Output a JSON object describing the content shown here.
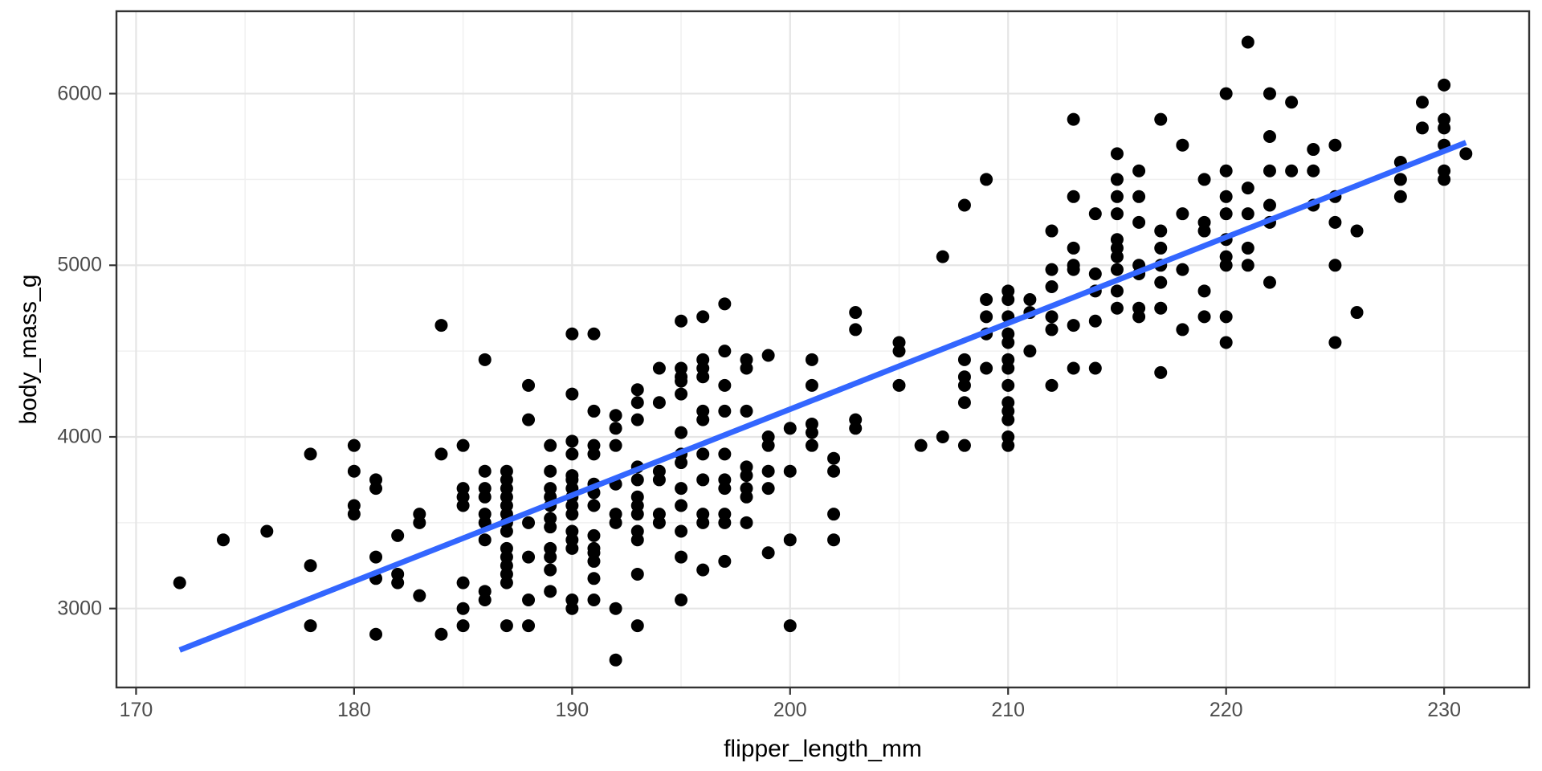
{
  "chart_data": {
    "type": "scatter",
    "title": "",
    "xlabel": "flipper_length_mm",
    "ylabel": "body_mass_g",
    "xlim": [
      169.1,
      233.9
    ],
    "ylim": [
      2540,
      6480
    ],
    "x_ticks": [
      170,
      180,
      190,
      200,
      210,
      220,
      230
    ],
    "y_ticks": [
      3000,
      4000,
      5000,
      6000
    ],
    "x_minor_ticks": [
      175,
      185,
      195,
      205,
      215,
      225
    ],
    "y_minor_ticks": [
      3500,
      4500,
      5500
    ],
    "grid": "on",
    "legend": "none",
    "trend_line": {
      "type": "linear-fit",
      "x1": 172,
      "y1": 2758,
      "x2": 231,
      "y2": 5715
    },
    "points": [
      [
        172,
        3150
      ],
      [
        174,
        3400
      ],
      [
        176,
        3450
      ],
      [
        178,
        3900
      ],
      [
        178,
        3250
      ],
      [
        178,
        2900
      ],
      [
        180,
        3950
      ],
      [
        180,
        3800
      ],
      [
        180,
        3600
      ],
      [
        180,
        3550
      ],
      [
        181,
        3750
      ],
      [
        181,
        3700
      ],
      [
        181,
        3300
      ],
      [
        181,
        3175
      ],
      [
        181,
        2850
      ],
      [
        182,
        3425
      ],
      [
        182,
        3200
      ],
      [
        182,
        3150
      ],
      [
        183,
        3550
      ],
      [
        183,
        3500
      ],
      [
        183,
        3075
      ],
      [
        184,
        4650
      ],
      [
        184,
        3900
      ],
      [
        184,
        2850
      ],
      [
        185,
        3950
      ],
      [
        185,
        3700
      ],
      [
        185,
        3650
      ],
      [
        185,
        3600
      ],
      [
        185,
        3150
      ],
      [
        185,
        3000
      ],
      [
        185,
        2900
      ],
      [
        186,
        4450
      ],
      [
        186,
        3800
      ],
      [
        186,
        3700
      ],
      [
        186,
        3650
      ],
      [
        186,
        3550
      ],
      [
        186,
        3500
      ],
      [
        186,
        3400
      ],
      [
        186,
        3100
      ],
      [
        186,
        3050
      ],
      [
        187,
        3800
      ],
      [
        187,
        3750
      ],
      [
        187,
        3700
      ],
      [
        187,
        3650
      ],
      [
        187,
        3600
      ],
      [
        187,
        3550
      ],
      [
        187,
        3500
      ],
      [
        187,
        3450
      ],
      [
        187,
        3350
      ],
      [
        187,
        3300
      ],
      [
        187,
        3250
      ],
      [
        187,
        3200
      ],
      [
        187,
        3150
      ],
      [
        187,
        2900
      ],
      [
        188,
        4300
      ],
      [
        188,
        4100
      ],
      [
        188,
        3500
      ],
      [
        188,
        3300
      ],
      [
        188,
        3050
      ],
      [
        188,
        2900
      ],
      [
        189,
        3950
      ],
      [
        189,
        3800
      ],
      [
        189,
        3700
      ],
      [
        189,
        3650
      ],
      [
        189,
        3600
      ],
      [
        189,
        3525
      ],
      [
        189,
        3475
      ],
      [
        189,
        3350
      ],
      [
        189,
        3300
      ],
      [
        189,
        3225
      ],
      [
        189,
        3100
      ],
      [
        190,
        4600
      ],
      [
        190,
        4250
      ],
      [
        190,
        3975
      ],
      [
        190,
        3900
      ],
      [
        190,
        3775
      ],
      [
        190,
        3750
      ],
      [
        190,
        3700
      ],
      [
        190,
        3650
      ],
      [
        190,
        3600
      ],
      [
        190,
        3550
      ],
      [
        190,
        3450
      ],
      [
        190,
        3400
      ],
      [
        190,
        3350
      ],
      [
        190,
        3050
      ],
      [
        190,
        3000
      ],
      [
        191,
        4600
      ],
      [
        191,
        4150
      ],
      [
        191,
        3950
      ],
      [
        191,
        3900
      ],
      [
        191,
        3725
      ],
      [
        191,
        3675
      ],
      [
        191,
        3600
      ],
      [
        191,
        3425
      ],
      [
        191,
        3350
      ],
      [
        191,
        3325
      ],
      [
        191,
        3275
      ],
      [
        191,
        3175
      ],
      [
        191,
        3050
      ],
      [
        192,
        4125
      ],
      [
        192,
        4050
      ],
      [
        192,
        3950
      ],
      [
        192,
        3725
      ],
      [
        192,
        3550
      ],
      [
        192,
        3500
      ],
      [
        192,
        3000
      ],
      [
        192,
        2700
      ],
      [
        193,
        4275
      ],
      [
        193,
        4200
      ],
      [
        193,
        4100
      ],
      [
        193,
        3825
      ],
      [
        193,
        3750
      ],
      [
        193,
        3650
      ],
      [
        193,
        3600
      ],
      [
        193,
        3550
      ],
      [
        193,
        3450
      ],
      [
        193,
        3400
      ],
      [
        193,
        3200
      ],
      [
        193,
        2900
      ],
      [
        194,
        4400
      ],
      [
        194,
        4200
      ],
      [
        194,
        3800
      ],
      [
        194,
        3750
      ],
      [
        194,
        3550
      ],
      [
        194,
        3500
      ],
      [
        195,
        4675
      ],
      [
        195,
        4400
      ],
      [
        195,
        4350
      ],
      [
        195,
        4325
      ],
      [
        195,
        4250
      ],
      [
        195,
        4025
      ],
      [
        195,
        3900
      ],
      [
        195,
        3850
      ],
      [
        195,
        3700
      ],
      [
        195,
        3600
      ],
      [
        195,
        3450
      ],
      [
        195,
        3300
      ],
      [
        195,
        3050
      ],
      [
        196,
        4700
      ],
      [
        196,
        4450
      ],
      [
        196,
        4400
      ],
      [
        196,
        4350
      ],
      [
        196,
        4150
      ],
      [
        196,
        4100
      ],
      [
        196,
        3900
      ],
      [
        196,
        3750
      ],
      [
        196,
        3550
      ],
      [
        196,
        3500
      ],
      [
        196,
        3225
      ],
      [
        197,
        4775
      ],
      [
        197,
        4500
      ],
      [
        197,
        4300
      ],
      [
        197,
        4150
      ],
      [
        197,
        3900
      ],
      [
        197,
        3750
      ],
      [
        197,
        3700
      ],
      [
        197,
        3550
      ],
      [
        197,
        3500
      ],
      [
        197,
        3275
      ],
      [
        198,
        4450
      ],
      [
        198,
        4400
      ],
      [
        198,
        4150
      ],
      [
        198,
        3825
      ],
      [
        198,
        3775
      ],
      [
        198,
        3700
      ],
      [
        198,
        3650
      ],
      [
        198,
        3500
      ],
      [
        199,
        4475
      ],
      [
        199,
        4000
      ],
      [
        199,
        3950
      ],
      [
        199,
        3800
      ],
      [
        199,
        3700
      ],
      [
        199,
        3325
      ],
      [
        200,
        4050
      ],
      [
        200,
        3800
      ],
      [
        200,
        3400
      ],
      [
        200,
        2900
      ],
      [
        201,
        4450
      ],
      [
        201,
        4300
      ],
      [
        201,
        4075
      ],
      [
        201,
        4025
      ],
      [
        201,
        3950
      ],
      [
        202,
        3875
      ],
      [
        202,
        3800
      ],
      [
        202,
        3550
      ],
      [
        202,
        3400
      ],
      [
        203,
        4725
      ],
      [
        203,
        4625
      ],
      [
        203,
        4100
      ],
      [
        203,
        4050
      ],
      [
        205,
        4550
      ],
      [
        205,
        4500
      ],
      [
        205,
        4300
      ],
      [
        206,
        3950
      ],
      [
        207,
        5050
      ],
      [
        207,
        4000
      ],
      [
        208,
        5350
      ],
      [
        208,
        4450
      ],
      [
        208,
        4350
      ],
      [
        208,
        4300
      ],
      [
        208,
        4200
      ],
      [
        208,
        3950
      ],
      [
        209,
        5500
      ],
      [
        209,
        4800
      ],
      [
        209,
        4700
      ],
      [
        209,
        4600
      ],
      [
        209,
        4400
      ],
      [
        210,
        4850
      ],
      [
        210,
        4800
      ],
      [
        210,
        4700
      ],
      [
        210,
        4600
      ],
      [
        210,
        4550
      ],
      [
        210,
        4450
      ],
      [
        210,
        4400
      ],
      [
        210,
        4300
      ],
      [
        210,
        4200
      ],
      [
        210,
        4150
      ],
      [
        210,
        4100
      ],
      [
        210,
        4000
      ],
      [
        210,
        3950
      ],
      [
        211,
        4800
      ],
      [
        211,
        4725
      ],
      [
        211,
        4500
      ],
      [
        212,
        5200
      ],
      [
        212,
        4975
      ],
      [
        212,
        4875
      ],
      [
        212,
        4700
      ],
      [
        212,
        4625
      ],
      [
        212,
        4300
      ],
      [
        213,
        5850
      ],
      [
        213,
        5400
      ],
      [
        213,
        5100
      ],
      [
        213,
        5000
      ],
      [
        213,
        4975
      ],
      [
        213,
        4650
      ],
      [
        213,
        4400
      ],
      [
        214,
        5300
      ],
      [
        214,
        4950
      ],
      [
        214,
        4850
      ],
      [
        214,
        4675
      ],
      [
        214,
        4400
      ],
      [
        215,
        5650
      ],
      [
        215,
        5500
      ],
      [
        215,
        5400
      ],
      [
        215,
        5300
      ],
      [
        215,
        5150
      ],
      [
        215,
        5100
      ],
      [
        215,
        5050
      ],
      [
        215,
        4975
      ],
      [
        215,
        4850
      ],
      [
        215,
        4750
      ],
      [
        216,
        5550
      ],
      [
        216,
        5400
      ],
      [
        216,
        5250
      ],
      [
        216,
        5000
      ],
      [
        216,
        4950
      ],
      [
        216,
        4750
      ],
      [
        216,
        4700
      ],
      [
        217,
        5850
      ],
      [
        217,
        5200
      ],
      [
        217,
        5100
      ],
      [
        217,
        5000
      ],
      [
        217,
        4900
      ],
      [
        217,
        4750
      ],
      [
        217,
        4375
      ],
      [
        218,
        5700
      ],
      [
        218,
        5300
      ],
      [
        218,
        4975
      ],
      [
        218,
        4625
      ],
      [
        219,
        5500
      ],
      [
        219,
        5250
      ],
      [
        219,
        5200
      ],
      [
        219,
        4850
      ],
      [
        219,
        4700
      ],
      [
        220,
        6000
      ],
      [
        220,
        5550
      ],
      [
        220,
        5400
      ],
      [
        220,
        5300
      ],
      [
        220,
        5150
      ],
      [
        220,
        5050
      ],
      [
        220,
        5000
      ],
      [
        220,
        4700
      ],
      [
        220,
        4550
      ],
      [
        221,
        6300
      ],
      [
        221,
        5450
      ],
      [
        221,
        5300
      ],
      [
        221,
        5100
      ],
      [
        221,
        5000
      ],
      [
        222,
        6000
      ],
      [
        222,
        5750
      ],
      [
        222,
        5550
      ],
      [
        222,
        5350
      ],
      [
        222,
        5250
      ],
      [
        222,
        4900
      ],
      [
        223,
        5950
      ],
      [
        223,
        5550
      ],
      [
        224,
        5675
      ],
      [
        224,
        5550
      ],
      [
        224,
        5350
      ],
      [
        225,
        5700
      ],
      [
        225,
        5400
      ],
      [
        225,
        5250
      ],
      [
        225,
        5000
      ],
      [
        225,
        4550
      ],
      [
        226,
        5200
      ],
      [
        226,
        4725
      ],
      [
        228,
        5600
      ],
      [
        228,
        5500
      ],
      [
        228,
        5400
      ],
      [
        229,
        5950
      ],
      [
        229,
        5800
      ],
      [
        230,
        6050
      ],
      [
        230,
        5850
      ],
      [
        230,
        5800
      ],
      [
        230,
        5700
      ],
      [
        230,
        5550
      ],
      [
        230,
        5500
      ],
      [
        231,
        5650
      ]
    ]
  },
  "style": {
    "point_color": "#000000",
    "trend_line_color": "#3366FF",
    "panel_border_color": "#333333",
    "major_grid_color": "#E5E5E5",
    "minor_grid_color": "#F0F0F0",
    "tick_mark_color": "#333333",
    "tick_label_color": "#4d4d4d",
    "axis_title_color": "#000000",
    "background_color": "#FFFFFF"
  }
}
